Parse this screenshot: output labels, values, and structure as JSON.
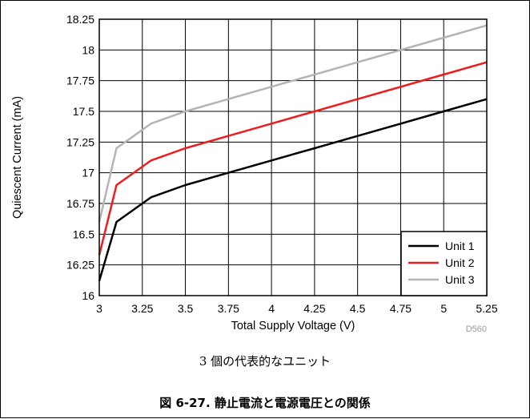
{
  "chart_data": {
    "type": "line",
    "x_label": "Total Supply Voltage (V)",
    "y_label": "Quiescent Current (mA)",
    "xlim": [
      3,
      5.25
    ],
    "ylim": [
      16,
      18.25
    ],
    "x_ticks": [
      3,
      3.25,
      3.5,
      3.75,
      4,
      4.25,
      4.5,
      4.75,
      5,
      5.25
    ],
    "x_tick_labels": [
      "3",
      "3.25",
      "3.5",
      "3.75",
      "4",
      "4.25",
      "4.5",
      "4.75",
      "5",
      "5.25"
    ],
    "y_ticks": [
      16,
      16.25,
      16.5,
      16.75,
      17,
      17.25,
      17.5,
      17.75,
      18,
      18.25
    ],
    "y_tick_labels": [
      "16",
      "16.25",
      "16.5",
      "16.75",
      "17",
      "17.25",
      "17.5",
      "17.75",
      "18",
      "18.25"
    ],
    "grid": true,
    "legend_position": "bottom-right",
    "series": [
      {
        "name": "Unit 1",
        "color": "#000000",
        "x": [
          3.0,
          3.1,
          3.3,
          3.5,
          4.0,
          4.5,
          5.0,
          5.25
        ],
        "y": [
          16.12,
          16.6,
          16.8,
          16.9,
          17.1,
          17.3,
          17.5,
          17.6
        ]
      },
      {
        "name": "Unit 2",
        "color": "#ee1c1c",
        "x": [
          3.0,
          3.1,
          3.3,
          3.5,
          4.0,
          4.5,
          5.0,
          5.25
        ],
        "y": [
          16.33,
          16.9,
          17.1,
          17.2,
          17.4,
          17.6,
          17.8,
          17.9
        ]
      },
      {
        "name": "Unit 3",
        "color": "#b4b4b4",
        "x": [
          3.0,
          3.1,
          3.3,
          3.5,
          4.0,
          4.5,
          5.0,
          5.25
        ],
        "y": [
          16.6,
          17.2,
          17.4,
          17.5,
          17.7,
          17.9,
          18.1,
          18.2
        ]
      }
    ]
  },
  "figure_code": "D560",
  "subcaption": "3 個の代表的なユニット",
  "caption": "図 6-27. 静止電流と電源電圧との関係"
}
